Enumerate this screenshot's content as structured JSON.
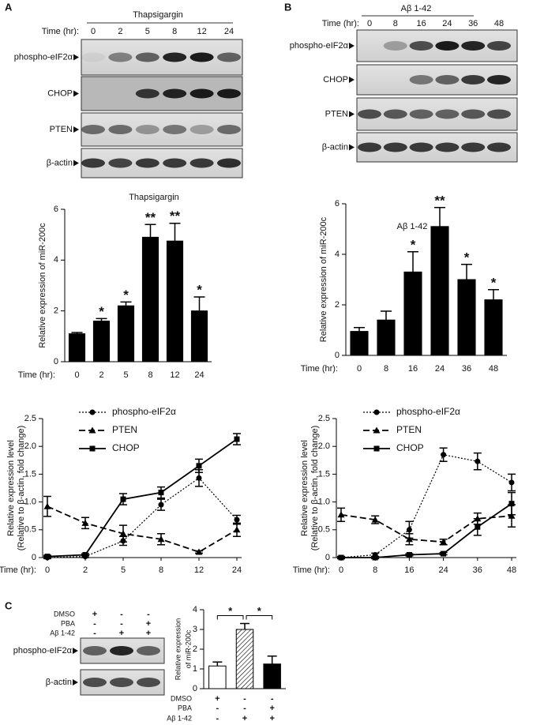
{
  "panel_labels": [
    "A",
    "B",
    "C"
  ],
  "blots": [
    {
      "title": "Thapsigargin",
      "time_label": "Time (hr):",
      "lanes": [
        "0",
        "2",
        "5",
        "8",
        "12",
        "24"
      ],
      "rows": [
        "phospho-eIF2α",
        "CHOP",
        "PTEN",
        "β-actin"
      ]
    },
    {
      "title": "Aβ 1-42",
      "time_label": "Time (hr):",
      "lanes": [
        "0",
        "8",
        "16",
        "24",
        "36",
        "48"
      ],
      "rows": [
        "phospho-eIF2α",
        "CHOP",
        "PTEN",
        "β-actin"
      ]
    },
    {
      "conditions": [
        {
          "name": "DMSO",
          "marks": [
            "+",
            "-",
            "-"
          ]
        },
        {
          "name": "PBA",
          "marks": [
            "-",
            "-",
            "+"
          ]
        },
        {
          "name": "Aβ 1-42",
          "marks": [
            "-",
            "+",
            "+"
          ]
        }
      ],
      "rows": [
        "phospho-eIF2α",
        "β-actin"
      ]
    }
  ],
  "chart_data": [
    {
      "type": "bar",
      "title": "Thapsigargin",
      "ylabel": "Relative expression of miR-200c",
      "xlabel": "Time (hr):",
      "categories": [
        "0",
        "2",
        "5",
        "8",
        "12",
        "24"
      ],
      "values": [
        1.1,
        1.6,
        2.2,
        4.9,
        4.75,
        2.0
      ],
      "errors": [
        0.05,
        0.1,
        0.15,
        0.5,
        0.7,
        0.55
      ],
      "significance": [
        null,
        "*",
        "*",
        "**",
        "**",
        "*"
      ],
      "color": "#000000",
      "ylim": [
        0,
        6
      ],
      "yticks": [
        0,
        2,
        4,
        6
      ]
    },
    {
      "type": "bar",
      "title": "Aβ 1-42",
      "ylabel": "Relative expression of miR-200c",
      "xlabel": "Time (hr):",
      "categories": [
        "0",
        "8",
        "16",
        "24",
        "36",
        "48"
      ],
      "values": [
        0.95,
        1.4,
        3.3,
        5.1,
        3.0,
        2.2
      ],
      "errors": [
        0.15,
        0.35,
        0.8,
        0.75,
        0.6,
        0.4
      ],
      "significance": [
        null,
        null,
        "*",
        "**",
        "*",
        "*"
      ],
      "color": "#000000",
      "ylim": [
        0,
        6
      ],
      "yticks": [
        0,
        2,
        4,
        6
      ]
    },
    {
      "type": "line",
      "ylabel": [
        "Relative expression level",
        "(Relative to β-actin, fold change)"
      ],
      "xlabel": "Time (hr):",
      "categories": [
        "0",
        "2",
        "5",
        "8",
        "12",
        "24"
      ],
      "series": [
        {
          "name": "phospho-eIF2α",
          "color": "#000000",
          "style": "dotted",
          "marker": "circle",
          "values": [
            0,
            0.02,
            0.3,
            0.95,
            1.43,
            0.68
          ],
          "errors": [
            0.02,
            0.02,
            0.08,
            0.1,
            0.15,
            0.08
          ]
        },
        {
          "name": "PTEN",
          "color": "#000000",
          "style": "dashed",
          "marker": "triangle",
          "values": [
            0.92,
            0.62,
            0.43,
            0.33,
            0.1,
            0.5
          ],
          "errors": [
            0.18,
            0.1,
            0.15,
            0.1,
            0.02,
            0.12
          ]
        },
        {
          "name": "CHOP",
          "color": "#000000",
          "style": "solid",
          "marker": "square",
          "values": [
            0.02,
            0.05,
            1.05,
            1.17,
            1.65,
            2.13
          ],
          "errors": [
            0.02,
            0.02,
            0.1,
            0.1,
            0.12,
            0.1
          ]
        }
      ],
      "ylim": [
        0,
        2.5
      ],
      "yticks": [
        0,
        0.5,
        {
          "value": 1,
          "label": "1.0"
        },
        1.5,
        {
          "value": 2,
          "label": "2.0"
        },
        2.5
      ]
    },
    {
      "type": "line",
      "ylabel": [
        "Relative expression level",
        "(Relative to β-actin, fold change)"
      ],
      "xlabel": "Time (hr):",
      "categories": [
        "0",
        "8",
        "16",
        "24",
        "36",
        "48"
      ],
      "series": [
        {
          "name": "phospho-eIF2α",
          "color": "#000000",
          "style": "dotted",
          "marker": "circle",
          "values": [
            0,
            0.05,
            0.5,
            1.85,
            1.73,
            1.35
          ],
          "errors": [
            0.02,
            0.03,
            0.15,
            0.12,
            0.15,
            0.15
          ]
        },
        {
          "name": "PTEN",
          "color": "#000000",
          "style": "dashed",
          "marker": "triangle",
          "values": [
            0.77,
            0.68,
            0.33,
            0.28,
            0.7,
            0.75
          ],
          "errors": [
            0.12,
            0.07,
            0.1,
            0.05,
            0.1,
            0.2
          ]
        },
        {
          "name": "CHOP",
          "color": "#000000",
          "style": "solid",
          "marker": "square",
          "values": [
            0,
            0,
            0.05,
            0.07,
            0.55,
            0.97
          ],
          "errors": [
            0.02,
            0.02,
            0.02,
            0.02,
            0.15,
            0.2
          ]
        }
      ],
      "ylim": [
        0,
        2.5
      ],
      "yticks": [
        0,
        0.5,
        {
          "value": 1,
          "label": "1.0"
        },
        1.5,
        {
          "value": 2,
          "label": "2.0"
        },
        2.5
      ]
    },
    {
      "type": "bar",
      "ylabel": [
        "Relative expression",
        "of miR-200c"
      ],
      "categories": [
        null,
        null,
        null
      ],
      "values": [
        1.15,
        3.0,
        1.25
      ],
      "errors": [
        0.2,
        0.3,
        0.4
      ],
      "fills": [
        "#ffffff",
        "#ffffff",
        "#000000"
      ],
      "hatched": [
        false,
        true,
        false
      ],
      "conditions": [
        {
          "name": "DMSO",
          "marks": [
            "+",
            "-",
            "-"
          ]
        },
        {
          "name": "PBA",
          "marks": [
            "-",
            "-",
            "+"
          ]
        },
        {
          "name": "Aβ 1-42",
          "marks": [
            "-",
            "+",
            "+"
          ]
        }
      ],
      "comparisons": [
        "*",
        "*"
      ],
      "ylim": [
        0,
        4
      ],
      "yticks": [
        0,
        1,
        2,
        3,
        4
      ]
    }
  ]
}
